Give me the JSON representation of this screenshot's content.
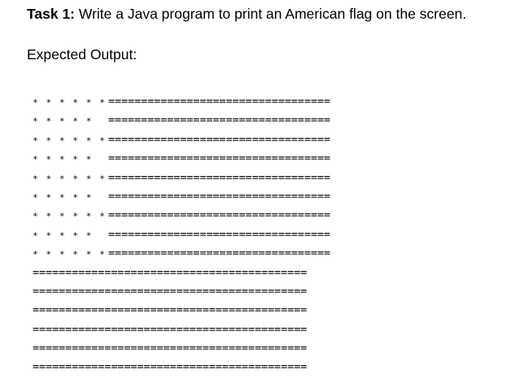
{
  "task": {
    "label": "Task 1:",
    "text": " Write a Java program to print an American flag on the screen."
  },
  "expected_output_label": "Expected Output:",
  "flag_rows": [
    {
      "stars": "* * * * * *",
      "equals": "=================================="
    },
    {
      "stars": " * * * * *",
      "equals": "=================================="
    },
    {
      "stars": "* * * * * *",
      "equals": "=================================="
    },
    {
      "stars": " * * * * *",
      "equals": "=================================="
    },
    {
      "stars": "* * * * * *",
      "equals": "=================================="
    },
    {
      "stars": " * * * * *",
      "equals": "=================================="
    },
    {
      "stars": "* * * * * *",
      "equals": "=================================="
    },
    {
      "stars": " * * * * *",
      "equals": "=================================="
    },
    {
      "stars": "* * * * * *",
      "equals": "=================================="
    },
    {
      "stars": "",
      "equals": "=========================================="
    },
    {
      "stars": "",
      "equals": "=========================================="
    },
    {
      "stars": "",
      "equals": "=========================================="
    },
    {
      "stars": "",
      "equals": "=========================================="
    },
    {
      "stars": "",
      "equals": "=========================================="
    },
    {
      "stars": "",
      "equals": "=========================================="
    }
  ]
}
